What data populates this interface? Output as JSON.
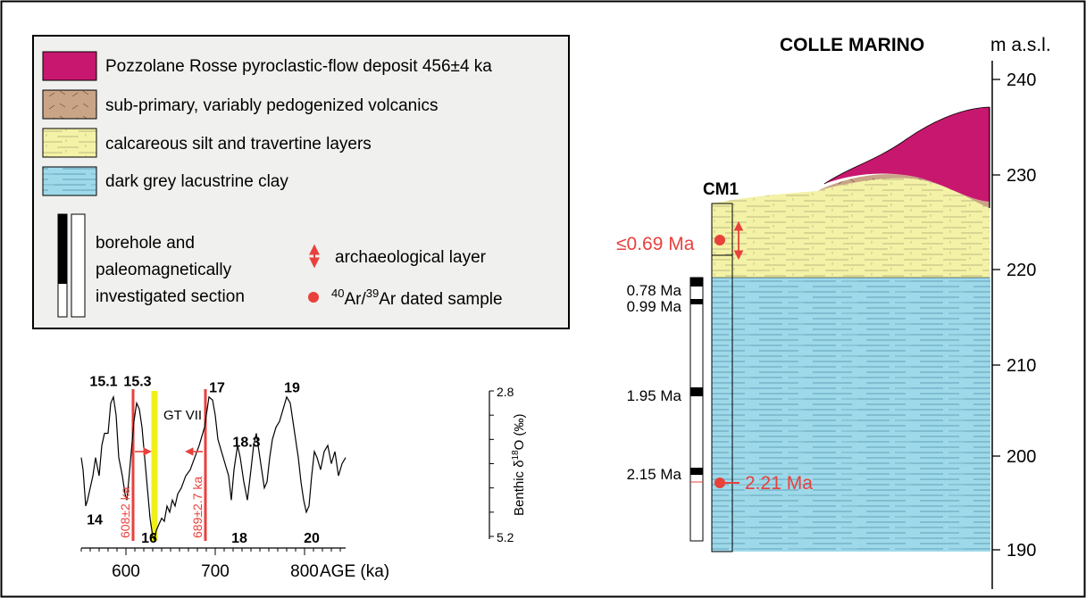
{
  "legend": {
    "items": [
      {
        "label": "Pozzolane Rosse pyroclastic-flow deposit 456±4 ka",
        "color": "#c8176e"
      },
      {
        "label": "sub-primary, variably pedogenized volcanics",
        "color": "#c9a486"
      },
      {
        "label": "calcareous silt and travertine layers",
        "color": "#f4f2a6"
      },
      {
        "label": "dark grey lacustrine clay",
        "color": "#9ed9ea"
      }
    ],
    "borehole_label_1": "borehole and",
    "borehole_label_2": "paleomagnetically",
    "borehole_label_3": "investigated section",
    "arch_label": "archaeological layer",
    "ar_sup1": "40",
    "ar_mid": "Ar/",
    "ar_sup2": "39",
    "ar_end": "Ar dated sample"
  },
  "section": {
    "title": "COLLE MARINO",
    "elevation_unit": "m a.s.l.",
    "elevation_ticks": [
      "240",
      "230",
      "220",
      "210",
      "200",
      "190"
    ],
    "borehole_name": "CM1",
    "age_le069": "≤0.69 Ma",
    "age_078": "0.78 Ma",
    "age_099": "0.99 Ma",
    "age_195": "1.95 Ma",
    "age_215": "2.15 Ma",
    "age_221": "2.21 Ma"
  },
  "colors": {
    "pink": "#c8176e",
    "brown": "#c9a486",
    "yellow": "#f4f2a6",
    "blue": "#9ed9ea",
    "red": "#e8413c",
    "gtvii": "#f2ef17"
  },
  "chart_data": {
    "type": "line",
    "x_unit": "ka",
    "xlabel": "AGE (ka)",
    "x_ticks": [
      "600",
      "700",
      "800"
    ],
    "xlim": [
      540,
      850
    ],
    "ylabel_pre": "Benthic δ",
    "ylabel_sup": "18",
    "ylabel_post": "O (‰)",
    "y_ticks": [
      "2.8",
      "5.2"
    ],
    "ylim": [
      5.2,
      2.8
    ],
    "series": [
      {
        "x": [
          550,
          552,
          555,
          557,
          560,
          563,
          566,
          570,
          573,
          576,
          580,
          583,
          586,
          589,
          592,
          596,
          599,
          601,
          603,
          606,
          609,
          612,
          615,
          618,
          621,
          624,
          627,
          630,
          632,
          634,
          637,
          640,
          643,
          646,
          649,
          652,
          655,
          658,
          662,
          667,
          672,
          677,
          682,
          688,
          693,
          697,
          700,
          703,
          707,
          711,
          715,
          718,
          721,
          725,
          728,
          732,
          736,
          740,
          743,
          746,
          749,
          752,
          755,
          758,
          761,
          764,
          768,
          772,
          776,
          780,
          784,
          787,
          790,
          793,
          796,
          799,
          802,
          805,
          808,
          811,
          814,
          818,
          822,
          826,
          830,
          834,
          838,
          842,
          846
        ],
        "y": [
          3.9,
          4.1,
          4.7,
          4.6,
          4.4,
          4.2,
          3.9,
          4.2,
          3.7,
          3.5,
          3.5,
          3.0,
          2.9,
          3.2,
          3.9,
          4.2,
          4.5,
          4.6,
          4.3,
          3.8,
          3.3,
          3.0,
          3.1,
          3.4,
          3.9,
          4.4,
          4.9,
          5.2,
          5.25,
          5.1,
          5.0,
          4.9,
          4.95,
          4.7,
          4.8,
          4.6,
          4.7,
          4.5,
          4.4,
          4.2,
          4.1,
          3.9,
          3.7,
          3.4,
          2.9,
          2.95,
          3.2,
          3.6,
          3.8,
          4.0,
          4.2,
          4.6,
          4.1,
          3.7,
          3.9,
          4.3,
          4.6,
          4.1,
          3.7,
          3.5,
          3.8,
          4.1,
          4.4,
          4.3,
          3.9,
          3.6,
          3.4,
          3.3,
          3.1,
          2.9,
          3.0,
          3.3,
          3.6,
          3.9,
          4.3,
          4.6,
          4.8,
          4.7,
          4.2,
          3.8,
          3.9,
          4.1,
          3.8,
          3.7,
          4.0,
          3.8,
          4.2,
          4.0,
          3.9
        ]
      }
    ],
    "mis_labels": [
      {
        "label": "15.1",
        "x": 575,
        "y": 2.72
      },
      {
        "label": "15.3",
        "x": 613,
        "y": 2.72
      },
      {
        "label": "17",
        "x": 702,
        "y": 2.82
      },
      {
        "label": "18.3",
        "x": 735,
        "y": 3.72
      },
      {
        "label": "19",
        "x": 786,
        "y": 2.82
      },
      {
        "label": "14",
        "x": 565,
        "y": 5.0
      },
      {
        "label": "16",
        "x": 626,
        "y": 5.3
      },
      {
        "label": "18",
        "x": 727,
        "y": 5.3
      },
      {
        "label": "20",
        "x": 808,
        "y": 5.3
      }
    ],
    "gt_vii": {
      "label": "GT VII",
      "x": 632
    },
    "markers": [
      {
        "x": 608,
        "label": "608±2 ka"
      },
      {
        "x": 689,
        "label": "689±2.7 ka"
      }
    ]
  }
}
